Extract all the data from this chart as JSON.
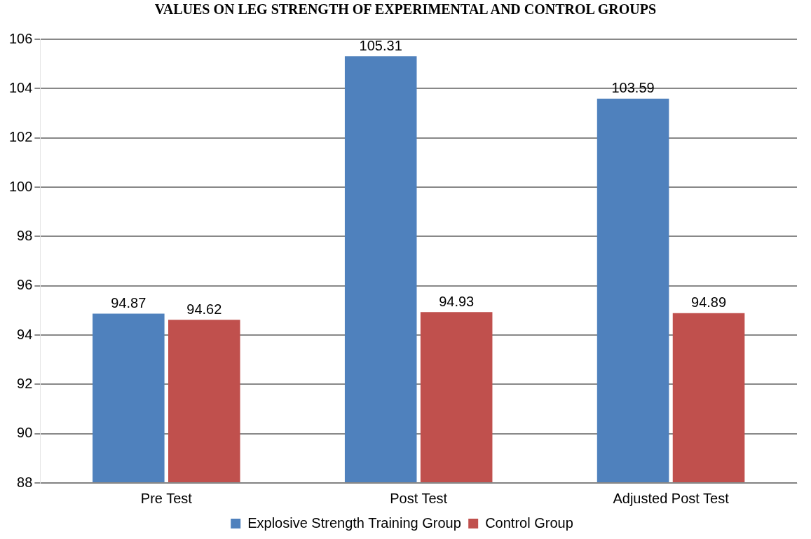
{
  "chart_data": {
    "type": "bar",
    "title": "VALUES ON LEG STRENGTH OF EXPERIMENTAL AND CONTROL GROUPS",
    "categories": [
      "Pre Test",
      "Post Test",
      "Adjusted Post Test"
    ],
    "series": [
      {
        "name": "Explosive Strength Training Group",
        "color": "#4f81bd",
        "values": [
          94.87,
          105.31,
          103.59
        ]
      },
      {
        "name": "Control Group",
        "color": "#c0504d",
        "values": [
          94.62,
          94.93,
          94.89
        ]
      }
    ],
    "ylim": [
      88,
      106
    ],
    "yticks": [
      88,
      90,
      92,
      94,
      96,
      98,
      100,
      102,
      104,
      106
    ],
    "grid": "y",
    "legend": "bottom",
    "data_labels": true
  }
}
